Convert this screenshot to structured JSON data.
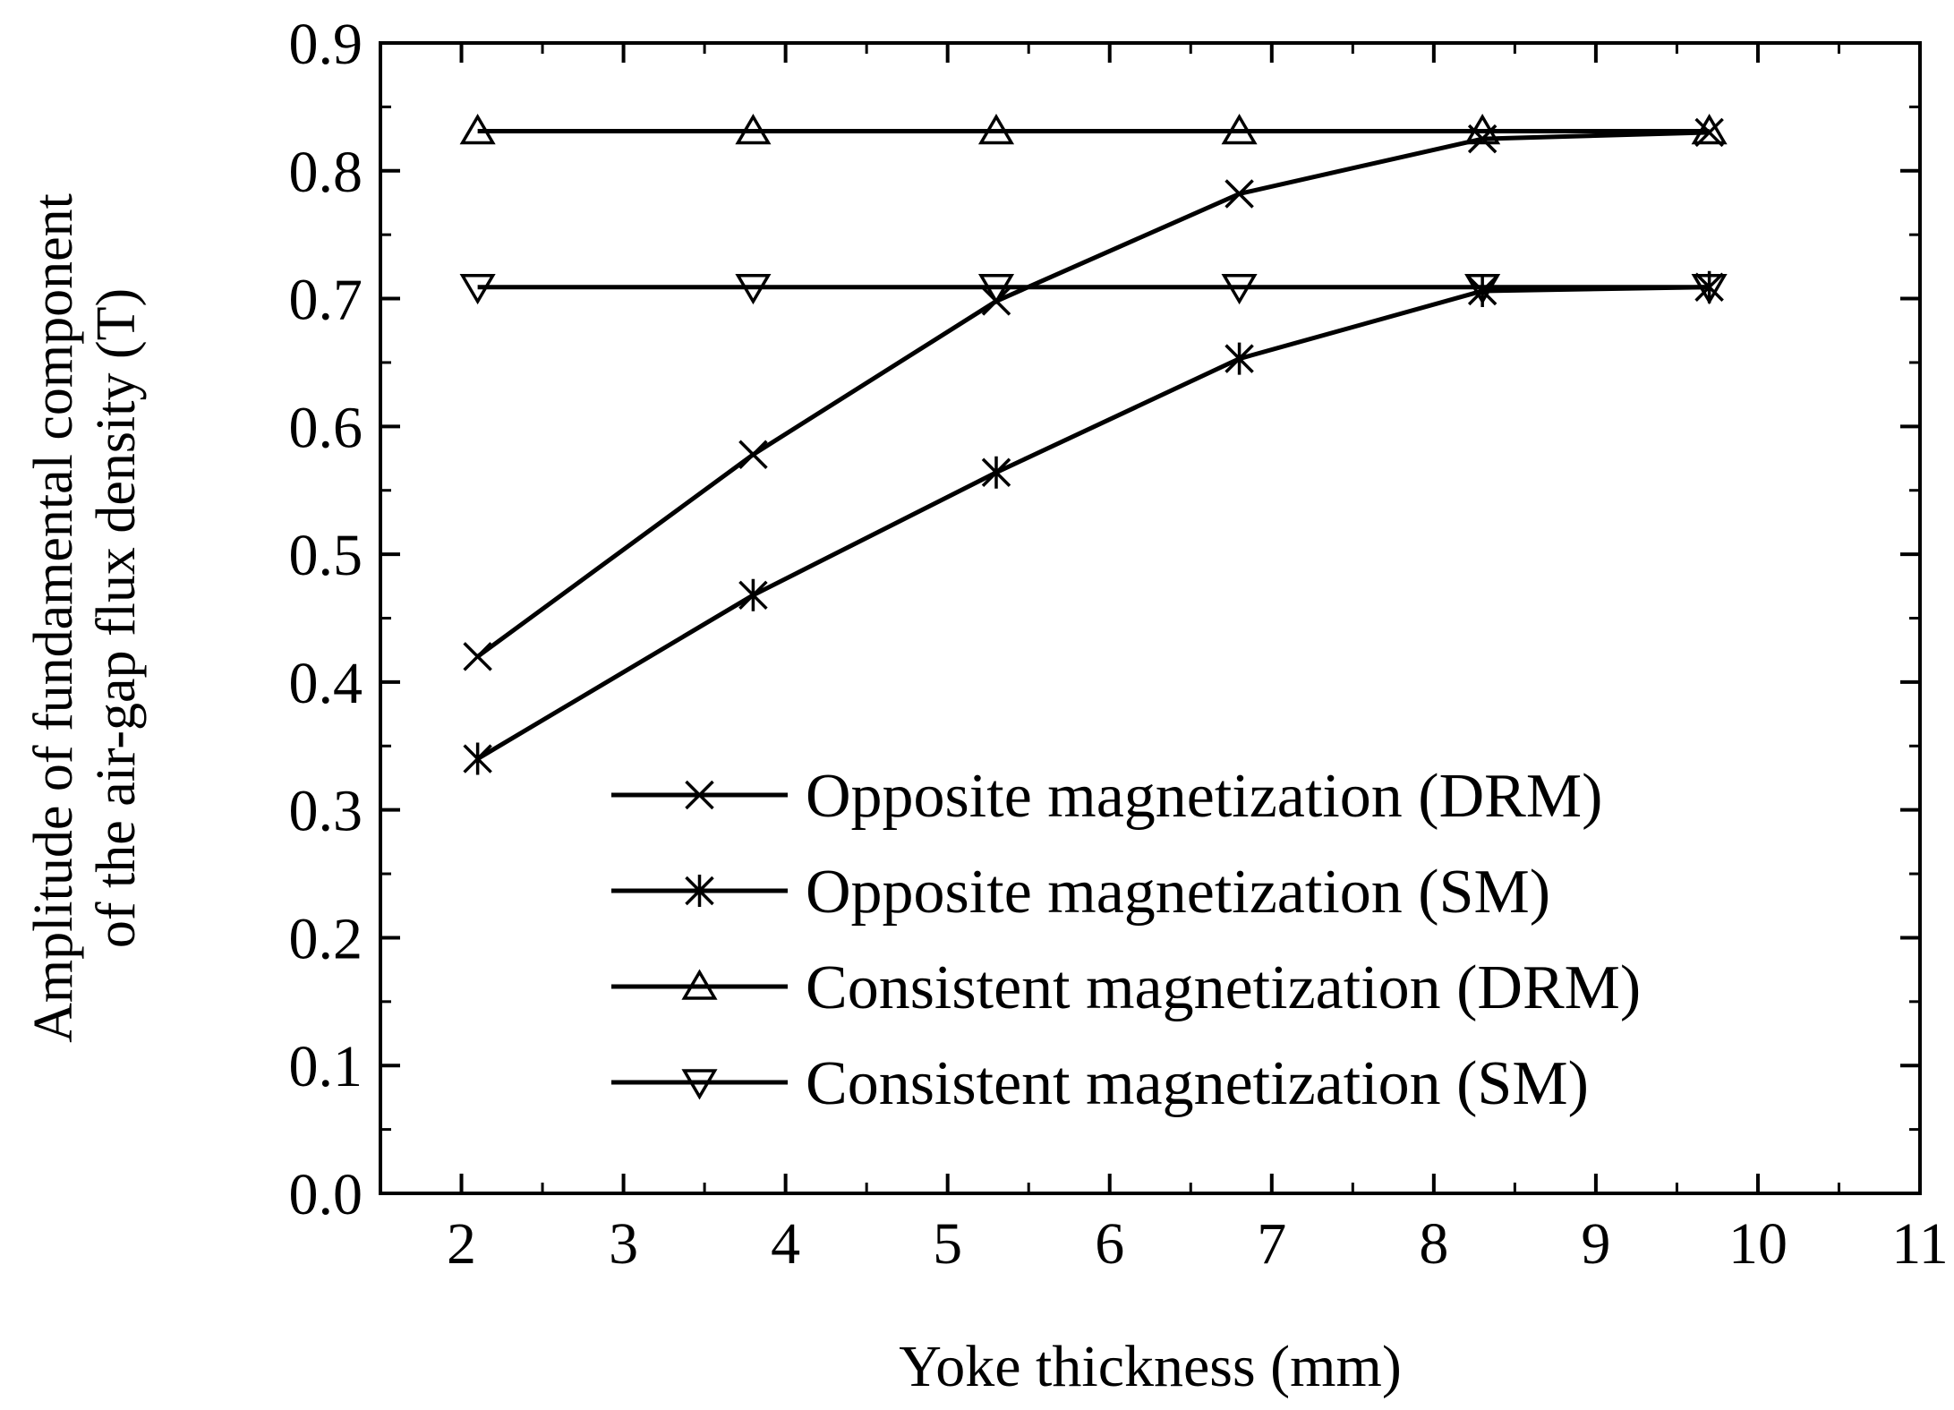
{
  "chart_data": {
    "type": "line",
    "title": "",
    "xlabel": "Yoke thickness (mm)",
    "ylabel_line1": "Amplitude of fundamental component",
    "ylabel_line2": "of the air-gap flux density (T)",
    "xlim": [
      1.5,
      11
    ],
    "ylim": [
      0,
      0.9
    ],
    "x_ticks": [
      2,
      3,
      4,
      5,
      6,
      7,
      8,
      9,
      10,
      11
    ],
    "x_tick_labels": [
      "2",
      "3",
      "4",
      "5",
      "6",
      "7",
      "8",
      "9",
      "10",
      "11"
    ],
    "y_ticks": [
      0.0,
      0.1,
      0.2,
      0.3,
      0.4,
      0.5,
      0.6,
      0.7,
      0.8,
      0.9
    ],
    "y_tick_labels": [
      "0.0",
      "0.1",
      "0.2",
      "0.3",
      "0.4",
      "0.5",
      "0.6",
      "0.7",
      "0.8",
      "0.9"
    ],
    "grid": false,
    "legend_position": "bottom-right",
    "x": [
      2.1,
      3.8,
      5.3,
      6.8,
      8.3,
      9.7
    ],
    "series": [
      {
        "name": "Opposite magnetization (DRM)",
        "marker": "x",
        "values": [
          0.42,
          0.578,
          0.698,
          0.782,
          0.825,
          0.83
        ]
      },
      {
        "name": "Opposite magnetization (SM)",
        "marker": "asterisk",
        "values": [
          0.34,
          0.468,
          0.564,
          0.653,
          0.706,
          0.709
        ]
      },
      {
        "name": "Consistent magnetization (DRM)",
        "marker": "triangle-up",
        "values": [
          0.831,
          0.831,
          0.831,
          0.831,
          0.831,
          0.831
        ]
      },
      {
        "name": "Consistent magnetization (SM)",
        "marker": "triangle-down",
        "values": [
          0.709,
          0.709,
          0.709,
          0.709,
          0.709,
          0.709
        ]
      }
    ],
    "color": "#000000"
  }
}
